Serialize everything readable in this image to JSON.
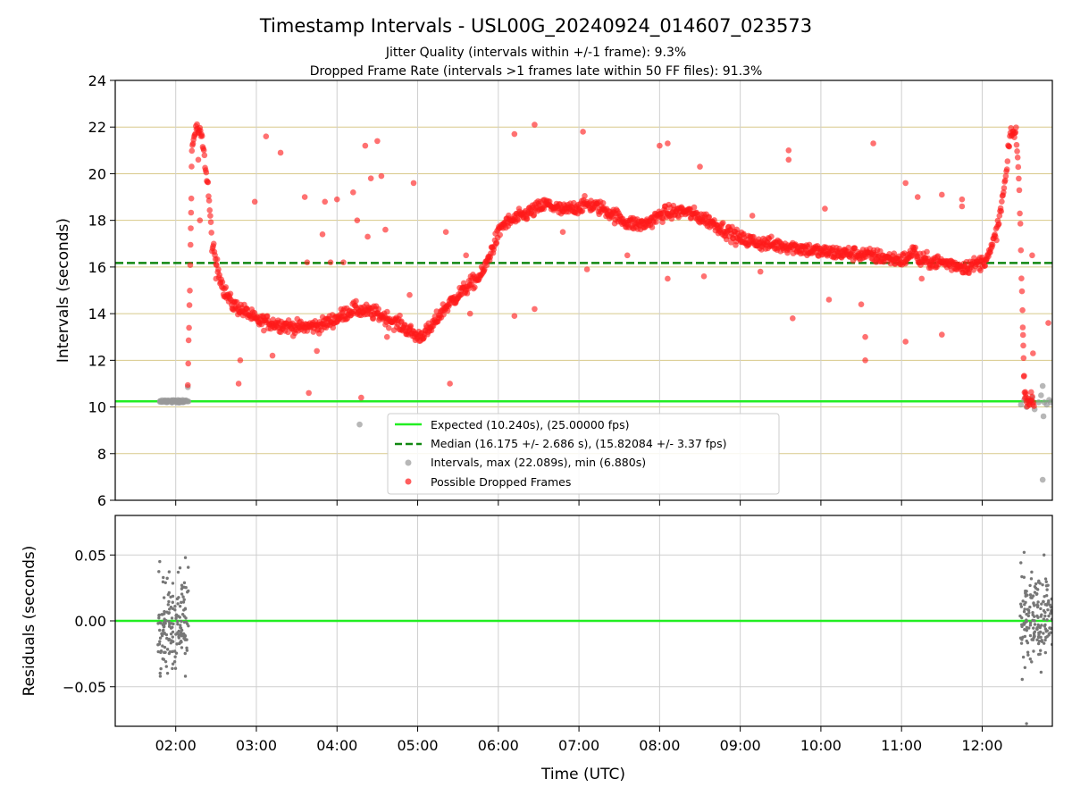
{
  "figure": {
    "title": "Timestamp Intervals - USL00G_20240924_014607_023573",
    "subtitle_line1": "Jitter Quality (intervals within +/-1 frame): 9.3%",
    "subtitle_line2": "Dropped Frame Rate (intervals >1 frames late within 50 FF files): 91.3%"
  },
  "chart_data": [
    {
      "type": "scatter",
      "panel": "top",
      "ylabel": "Intervals (seconds)",
      "ylim": [
        6,
        24
      ],
      "yticks": [
        6,
        8,
        10,
        12,
        14,
        16,
        18,
        20,
        22,
        24
      ],
      "xlim_hours": [
        1.25,
        12.87
      ],
      "x_tick_hours": [
        2,
        3,
        4,
        5,
        6,
        7,
        8,
        9,
        10,
        11,
        12
      ],
      "x_tick_labels": [
        "02:00",
        "03:00",
        "04:00",
        "05:00",
        "06:00",
        "07:00",
        "08:00",
        "09:00",
        "10:00",
        "11:00",
        "12:00"
      ],
      "grid": "vertical grey at x ticks; horizontal khaki at y ticks",
      "legend_placement": "lower-center",
      "expected_line": {
        "y": 10.24,
        "label": "Expected (10.240s), (25.00000 fps)",
        "color": "#22ee22"
      },
      "median_line": {
        "y": 16.175,
        "label": "Median (16.175 +/- 2.686 s), (15.82084 +/- 3.37 fps)",
        "color": "#118811"
      },
      "grey_series": {
        "label": "Intervals, max (22.089s), min (6.880s)",
        "color": "#999999",
        "points": [
          [
            1.82,
            10.22
          ],
          [
            1.85,
            10.25
          ],
          [
            1.88,
            10.21
          ],
          [
            1.9,
            10.24
          ],
          [
            1.93,
            10.26
          ],
          [
            1.95,
            10.22
          ],
          [
            1.98,
            10.23
          ],
          [
            2.0,
            10.25
          ],
          [
            2.03,
            10.21
          ],
          [
            2.05,
            10.24
          ],
          [
            2.08,
            10.26
          ],
          [
            2.1,
            10.22
          ],
          [
            2.13,
            10.24
          ],
          [
            2.15,
            10.85
          ],
          [
            4.28,
            9.25
          ],
          [
            12.48,
            10.1
          ],
          [
            12.52,
            10.3
          ],
          [
            12.55,
            10.0
          ],
          [
            12.6,
            10.2
          ],
          [
            12.62,
            10.4
          ],
          [
            12.65,
            9.9
          ],
          [
            12.7,
            10.2
          ],
          [
            12.73,
            10.5
          ],
          [
            12.75,
            10.9
          ],
          [
            12.76,
            9.6
          ],
          [
            12.77,
            10.2
          ],
          [
            12.8,
            10.1
          ],
          [
            12.83,
            10.3
          ],
          [
            12.85,
            10.2
          ],
          [
            12.75,
            6.88
          ]
        ]
      },
      "red_series": {
        "label": "Possible Dropped Frames",
        "color": "#ff1a1a",
        "trend": [
          [
            2.15,
            11.0
          ],
          [
            2.18,
            16.0
          ],
          [
            2.2,
            21.0
          ],
          [
            2.25,
            22.0
          ],
          [
            2.32,
            21.6
          ],
          [
            2.4,
            19.5
          ],
          [
            2.45,
            17.0
          ],
          [
            2.5,
            16.2
          ],
          [
            2.6,
            15.0
          ],
          [
            2.7,
            14.4
          ],
          [
            2.9,
            14.0
          ],
          [
            3.0,
            13.7
          ],
          [
            3.2,
            13.6
          ],
          [
            3.5,
            13.4
          ],
          [
            3.8,
            13.5
          ],
          [
            4.0,
            13.8
          ],
          [
            4.2,
            14.2
          ],
          [
            4.5,
            14.0
          ],
          [
            4.8,
            13.5
          ],
          [
            5.0,
            13.0
          ],
          [
            5.15,
            13.3
          ],
          [
            5.3,
            14.1
          ],
          [
            5.5,
            14.8
          ],
          [
            5.8,
            15.7
          ],
          [
            5.95,
            17.0
          ],
          [
            6.05,
            17.8
          ],
          [
            6.3,
            18.2
          ],
          [
            6.6,
            18.7
          ],
          [
            6.8,
            18.4
          ],
          [
            7.1,
            18.7
          ],
          [
            7.3,
            18.5
          ],
          [
            7.6,
            17.9
          ],
          [
            7.8,
            17.8
          ],
          [
            8.05,
            18.3
          ],
          [
            8.3,
            18.4
          ],
          [
            8.6,
            18.0
          ],
          [
            9.0,
            17.2
          ],
          [
            9.3,
            17.0
          ],
          [
            9.6,
            16.9
          ],
          [
            10.0,
            16.65
          ],
          [
            10.5,
            16.55
          ],
          [
            11.0,
            16.3
          ],
          [
            11.1,
            16.4
          ],
          [
            11.15,
            16.9
          ],
          [
            11.2,
            16.3
          ],
          [
            11.5,
            16.2
          ],
          [
            11.8,
            16.0
          ],
          [
            12.0,
            16.2
          ],
          [
            12.1,
            16.6
          ],
          [
            12.2,
            17.8
          ],
          [
            12.3,
            20.0
          ],
          [
            12.35,
            21.8
          ],
          [
            12.42,
            21.7
          ],
          [
            12.46,
            19.5
          ],
          [
            12.5,
            14.0
          ],
          [
            12.52,
            11.0
          ],
          [
            12.55,
            10.3
          ],
          [
            12.65,
            10.25
          ]
        ],
        "outliers": [
          [
            2.28,
            20.6
          ],
          [
            2.3,
            18.0
          ],
          [
            2.5,
            15.5
          ],
          [
            2.8,
            12.0
          ],
          [
            2.78,
            11.0
          ],
          [
            2.98,
            18.8
          ],
          [
            3.12,
            21.6
          ],
          [
            3.2,
            12.2
          ],
          [
            3.3,
            20.9
          ],
          [
            3.6,
            19.0
          ],
          [
            3.63,
            16.2
          ],
          [
            3.65,
            10.6
          ],
          [
            3.75,
            12.4
          ],
          [
            3.82,
            17.4
          ],
          [
            3.85,
            18.8
          ],
          [
            3.92,
            16.2
          ],
          [
            4.0,
            18.9
          ],
          [
            4.08,
            16.2
          ],
          [
            4.2,
            19.2
          ],
          [
            4.25,
            18.0
          ],
          [
            4.3,
            10.4
          ],
          [
            4.35,
            21.2
          ],
          [
            4.38,
            17.3
          ],
          [
            4.42,
            19.8
          ],
          [
            4.5,
            21.4
          ],
          [
            4.55,
            19.9
          ],
          [
            4.6,
            17.6
          ],
          [
            4.62,
            13.0
          ],
          [
            4.9,
            14.8
          ],
          [
            4.95,
            19.6
          ],
          [
            5.35,
            17.5
          ],
          [
            5.4,
            11.0
          ],
          [
            5.6,
            16.5
          ],
          [
            5.65,
            14.0
          ],
          [
            6.2,
            21.7
          ],
          [
            6.2,
            13.9
          ],
          [
            6.45,
            22.1
          ],
          [
            6.45,
            14.2
          ],
          [
            6.8,
            17.5
          ],
          [
            7.05,
            21.8
          ],
          [
            7.1,
            15.9
          ],
          [
            7.6,
            16.5
          ],
          [
            8.0,
            21.2
          ],
          [
            8.1,
            21.3
          ],
          [
            8.1,
            15.5
          ],
          [
            8.5,
            20.3
          ],
          [
            8.55,
            15.6
          ],
          [
            9.15,
            18.2
          ],
          [
            9.25,
            15.8
          ],
          [
            9.6,
            21.0
          ],
          [
            9.6,
            20.6
          ],
          [
            9.65,
            13.8
          ],
          [
            10.05,
            18.5
          ],
          [
            10.1,
            14.6
          ],
          [
            10.5,
            14.4
          ],
          [
            10.55,
            13.0
          ],
          [
            10.55,
            12.0
          ],
          [
            10.65,
            21.3
          ],
          [
            11.05,
            19.6
          ],
          [
            11.05,
            12.8
          ],
          [
            11.2,
            19.0
          ],
          [
            11.25,
            15.5
          ],
          [
            11.5,
            19.1
          ],
          [
            11.5,
            13.1
          ],
          [
            11.75,
            18.9
          ],
          [
            11.75,
            18.6
          ],
          [
            12.62,
            16.5
          ],
          [
            12.63,
            12.3
          ],
          [
            12.82,
            13.6
          ]
        ]
      }
    },
    {
      "type": "scatter",
      "panel": "bottom",
      "ylabel": "Residuals (seconds)",
      "xlabel": "Time (UTC)",
      "ylim": [
        -0.08,
        0.08
      ],
      "yticks": [
        -0.05,
        0.0,
        0.05
      ],
      "ytick_labels": [
        "−0.05",
        "0.00",
        "0.05"
      ],
      "xlim_hours": [
        1.25,
        12.87
      ],
      "x_tick_hours": [
        2,
        3,
        4,
        5,
        6,
        7,
        8,
        9,
        10,
        11,
        12
      ],
      "x_tick_labels": [
        "02:00",
        "03:00",
        "04:00",
        "05:00",
        "06:00",
        "07:00",
        "08:00",
        "09:00",
        "10:00",
        "11:00",
        "12:00"
      ],
      "grid": "both axes, light grey",
      "zero_line": {
        "y": 0.0,
        "color": "#22ee22"
      },
      "residual_clusters": [
        {
          "x_range": [
            1.78,
            2.16
          ],
          "y_spread": 0.045,
          "count": 170
        },
        {
          "x_range": [
            12.47,
            12.87
          ],
          "y_spread": 0.05,
          "count": 170
        }
      ],
      "residual_extremes": [
        [
          2.12,
          -0.042
        ],
        [
          2.12,
          0.048
        ],
        [
          12.52,
          0.052
        ],
        [
          12.55,
          -0.078
        ]
      ],
      "series_color": "#777777"
    }
  ]
}
